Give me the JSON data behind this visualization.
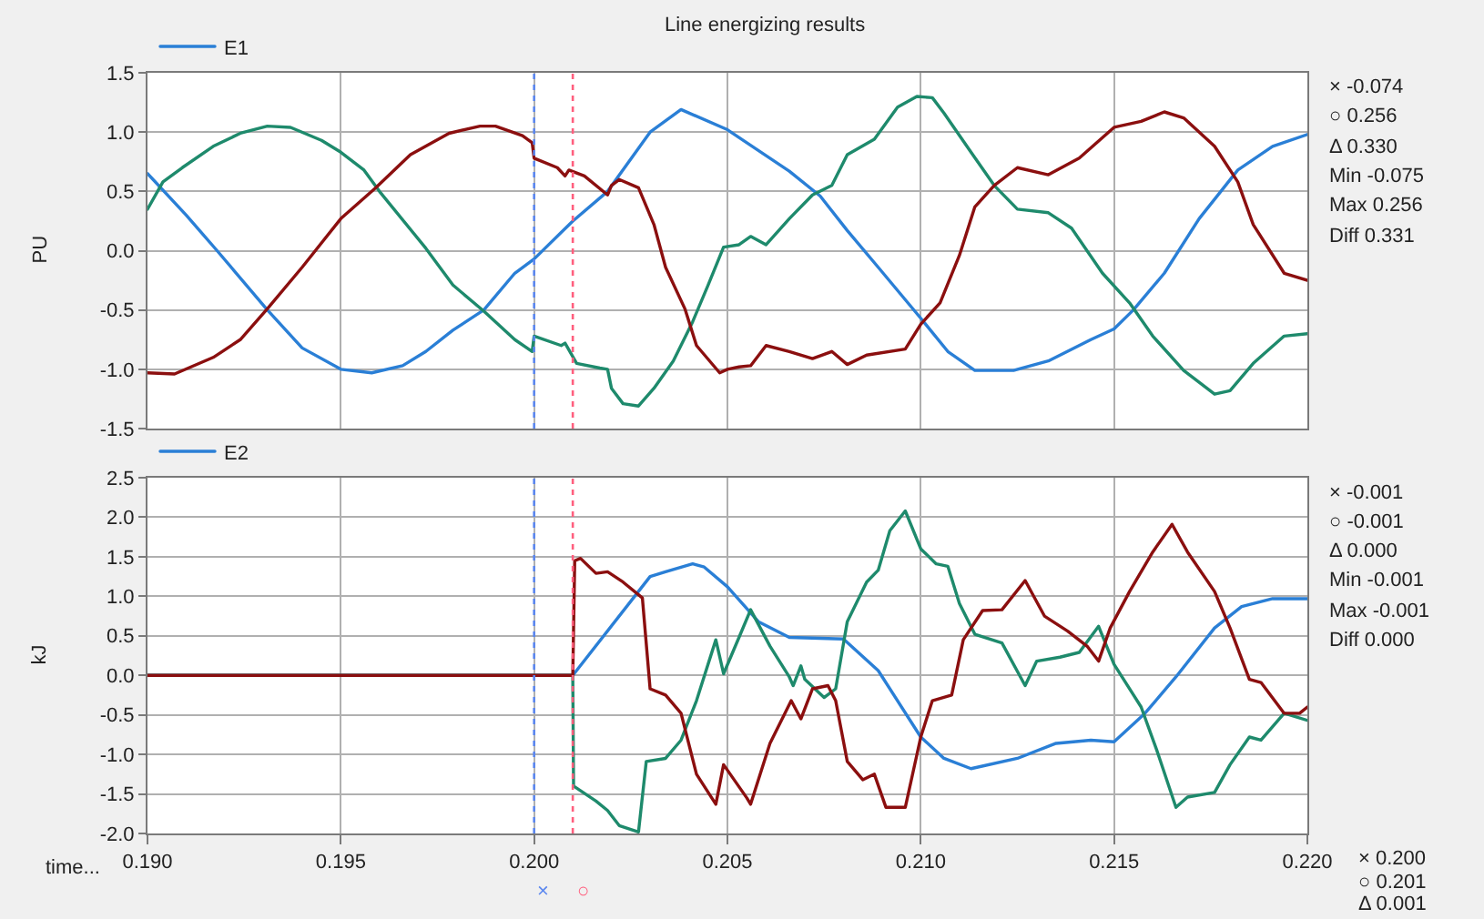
{
  "chart_data": [
    {
      "type": "line",
      "title": "Line energizing results",
      "ylabel": "PU",
      "xlim": [
        0.19,
        0.22
      ],
      "xticks": [
        0.19,
        0.195,
        0.2,
        0.205,
        0.21,
        0.215,
        0.22
      ],
      "ylim": [
        -1.5,
        1.5
      ],
      "yticks": [
        1.5,
        {
          "value": 1,
          "label": "1.0"
        },
        0.5,
        {
          "value": 0,
          "label": "0.0"
        },
        -0.5,
        {
          "value": -1,
          "label": "-1.0"
        },
        -1.5
      ],
      "tick_labels": "y",
      "grid": true,
      "legend": "top left",
      "series": [
        {
          "name": "E1",
          "color": "#2a7fd6",
          "x": [
            0.19,
            0.191,
            0.1918,
            0.1931,
            0.194,
            0.195,
            0.1958,
            0.1966,
            0.1972,
            0.1979,
            0.1987,
            0.1995,
            0.2,
            0.201,
            0.2019,
            0.203,
            0.2038,
            0.205,
            0.2066,
            0.2074,
            0.2081,
            0.2089,
            0.21,
            0.2107,
            0.2114,
            0.2124,
            0.2133,
            0.2144,
            0.215,
            0.2155,
            0.2163,
            0.2172,
            0.2182,
            0.2191,
            0.22
          ],
          "values": [
            0.65,
            0.3,
            0.0,
            -0.5,
            -0.82,
            -1.0,
            -1.03,
            -0.97,
            -0.85,
            -0.67,
            -0.5,
            -0.19,
            -0.07,
            0.25,
            0.5,
            1.0,
            1.19,
            1.02,
            0.67,
            0.46,
            0.17,
            -0.14,
            -0.57,
            -0.85,
            -1.01,
            -1.01,
            -0.93,
            -0.75,
            -0.66,
            -0.5,
            -0.19,
            0.27,
            0.68,
            0.88,
            0.98
          ]
        },
        {
          "color": "#1e8a6c",
          "x": [
            0.19,
            0.1904,
            0.1909,
            0.1917,
            0.1924,
            0.1931,
            0.1937,
            0.1945,
            0.195,
            0.1956,
            0.196,
            0.1972,
            0.1979,
            0.1987,
            0.1995,
            0.19995,
            0.2,
            0.2007,
            0.2008,
            0.2011,
            0.2017,
            0.2019,
            0.202,
            0.2023,
            0.2027,
            0.2031,
            0.2036,
            0.2041,
            0.2045,
            0.2049,
            0.2053,
            0.2056,
            0.206,
            0.2066,
            0.2072,
            0.2077,
            0.2081,
            0.2088,
            0.2094,
            0.2099,
            0.2103,
            0.2106,
            0.2113,
            0.2119,
            0.2125,
            0.2133,
            0.2139,
            0.2147,
            0.2154,
            0.216,
            0.2168,
            0.2176,
            0.218,
            0.2186,
            0.2194,
            0.22
          ],
          "values": [
            0.35,
            0.58,
            0.7,
            0.88,
            0.99,
            1.05,
            1.04,
            0.93,
            0.83,
            0.68,
            0.5,
            0.02,
            -0.29,
            -0.51,
            -0.75,
            -0.85,
            -0.72,
            -0.8,
            -0.78,
            -0.95,
            -0.99,
            -1.0,
            -1.16,
            -1.29,
            -1.31,
            -1.16,
            -0.93,
            -0.6,
            -0.29,
            0.03,
            0.05,
            0.12,
            0.05,
            0.27,
            0.47,
            0.55,
            0.81,
            0.94,
            1.21,
            1.3,
            1.29,
            1.16,
            0.83,
            0.55,
            0.35,
            0.32,
            0.19,
            -0.19,
            -0.44,
            -0.72,
            -1.01,
            -1.21,
            -1.18,
            -0.95,
            -0.72,
            -0.7
          ]
        },
        {
          "color": "#8b0f0f",
          "x": [
            0.19,
            0.1907,
            0.1917,
            0.1924,
            0.1931,
            0.194,
            0.195,
            0.1959,
            0.1968,
            0.1978,
            0.1986,
            0.199,
            0.1997,
            0.19995,
            0.2,
            0.2006,
            0.2008,
            0.2009,
            0.2013,
            0.2019,
            0.202,
            0.2022,
            0.2027,
            0.2031,
            0.2034,
            0.2039,
            0.2042,
            0.2048,
            0.205,
            0.2053,
            0.2056,
            0.206,
            0.2066,
            0.2072,
            0.2077,
            0.2081,
            0.2086,
            0.2096,
            0.21,
            0.2105,
            0.211,
            0.2114,
            0.2119,
            0.2125,
            0.2133,
            0.2141,
            0.215,
            0.2157,
            0.2163,
            0.2168,
            0.2176,
            0.2182,
            0.2186,
            0.2194,
            0.22
          ],
          "values": [
            -1.03,
            -1.04,
            -0.9,
            -0.75,
            -0.49,
            -0.14,
            0.27,
            0.53,
            0.81,
            0.99,
            1.05,
            1.05,
            0.97,
            0.91,
            0.78,
            0.7,
            0.63,
            0.68,
            0.63,
            0.47,
            0.55,
            0.6,
            0.53,
            0.22,
            -0.14,
            -0.49,
            -0.8,
            -1.03,
            -1.0,
            -0.98,
            -0.97,
            -0.8,
            -0.85,
            -0.91,
            -0.85,
            -0.96,
            -0.88,
            -0.83,
            -0.62,
            -0.44,
            -0.04,
            0.37,
            0.55,
            0.7,
            0.64,
            0.78,
            1.04,
            1.09,
            1.17,
            1.12,
            0.88,
            0.58,
            0.22,
            -0.19,
            -0.25
          ]
        }
      ],
      "ref_lines": [
        {
          "axis": "x",
          "value": 0.2,
          "color": "#5a86ef",
          "line_style": "dotted"
        },
        {
          "axis": "x",
          "value": 0.201,
          "color": "#ff5f7e",
          "line_style": "dotted"
        }
      ],
      "annotations": [
        "× -0.074",
        "○ 0.256",
        "Δ 0.330",
        "Min -0.075",
        "Max 0.256",
        "Diff 0.331"
      ]
    },
    {
      "type": "line",
      "ylabel": "kJ",
      "xlabel": "time...",
      "xlim": [
        0.19,
        0.22
      ],
      "xticks": [
        {
          "value": 0.19,
          "label": "0.190"
        },
        0.195,
        {
          "value": 0.2,
          "label": "0.200"
        },
        0.205,
        {
          "value": 0.21,
          "label": "0.210"
        },
        0.215,
        {
          "value": 0.22,
          "label": "0.220"
        }
      ],
      "ylim": [
        -2,
        2.5
      ],
      "yticks": [
        2.5,
        {
          "value": 2,
          "label": "2.0"
        },
        1.5,
        {
          "value": 1,
          "label": "1.0"
        },
        0.5,
        {
          "value": 0,
          "label": "0.0"
        },
        -0.5,
        {
          "value": -1,
          "label": "-1.0"
        },
        -1.5,
        {
          "value": -2,
          "label": "-2.0"
        }
      ],
      "grid": true,
      "legend": "top left",
      "series": [
        {
          "name": "E2",
          "color": "#2a7fd6",
          "x": [
            0.19,
            0.201,
            0.2026,
            0.203,
            0.2034,
            0.2041,
            0.2044,
            0.205,
            0.2058,
            0.2066,
            0.208,
            0.2089,
            0.21,
            0.2106,
            0.2113,
            0.2125,
            0.2135,
            0.2144,
            0.215,
            0.2158,
            0.2166,
            0.2176,
            0.2183,
            0.2191,
            0.22
          ],
          "values": [
            0,
            0,
            1.0,
            1.25,
            1.31,
            1.41,
            1.37,
            1.12,
            0.68,
            0.48,
            0.46,
            0.06,
            -0.78,
            -1.05,
            -1.18,
            -1.05,
            -0.86,
            -0.82,
            -0.84,
            -0.48,
            -0.02,
            0.6,
            0.87,
            0.97,
            0.97
          ]
        },
        {
          "color": "#1e8a6c",
          "x": [
            0.19,
            0.201,
            0.20102,
            0.2016,
            0.2019,
            0.2022,
            0.2027,
            0.2029,
            0.2034,
            0.2038,
            0.2042,
            0.2047,
            0.2049,
            0.2053,
            0.2056,
            0.2061,
            0.2066,
            0.2067,
            0.2069,
            0.207,
            0.2075,
            0.2078,
            0.2081,
            0.2086,
            0.2089,
            0.2092,
            0.2096,
            0.21,
            0.2104,
            0.2107,
            0.211,
            0.2114,
            0.2121,
            0.2127,
            0.213,
            0.2136,
            0.2141,
            0.2146,
            0.215,
            0.2157,
            0.2161,
            0.2166,
            0.2169,
            0.2176,
            0.218,
            0.2185,
            0.2188,
            0.2194,
            0.22
          ],
          "values": [
            0,
            0,
            -1.4,
            -1.59,
            -1.71,
            -1.9,
            -1.98,
            -1.09,
            -1.05,
            -0.82,
            -0.32,
            0.45,
            0.02,
            0.48,
            0.83,
            0.37,
            -0.02,
            -0.13,
            0.12,
            -0.05,
            -0.28,
            -0.17,
            0.68,
            1.18,
            1.33,
            1.83,
            2.08,
            1.6,
            1.41,
            1.38,
            0.91,
            0.52,
            0.41,
            -0.13,
            0.18,
            0.23,
            0.29,
            0.62,
            0.14,
            -0.4,
            -0.94,
            -1.67,
            -1.54,
            -1.48,
            -1.13,
            -0.78,
            -0.82,
            -0.48,
            -0.57
          ]
        },
        {
          "color": "#8b0f0f",
          "x": [
            0.19,
            0.201,
            0.20105,
            0.2012,
            0.2016,
            0.2019,
            0.2023,
            0.2028,
            0.203,
            0.2034,
            0.2038,
            0.2042,
            0.2047,
            0.2049,
            0.2055,
            0.2056,
            0.2061,
            0.20665,
            0.2069,
            0.2072,
            0.2076,
            0.2078,
            0.2081,
            0.2085,
            0.2088,
            0.2091,
            0.2096,
            0.21,
            0.2103,
            0.2108,
            0.2111,
            0.2116,
            0.2121,
            0.2127,
            0.2132,
            0.2138,
            0.2143,
            0.2146,
            0.2149,
            0.2154,
            0.216,
            0.2165,
            0.2169,
            0.2176,
            0.218,
            0.2185,
            0.2188,
            0.2194,
            0.2198,
            0.22
          ],
          "values": [
            0,
            0,
            1.45,
            1.48,
            1.29,
            1.31,
            1.18,
            0.98,
            -0.17,
            -0.25,
            -0.48,
            -1.25,
            -1.63,
            -1.13,
            -1.55,
            -1.63,
            -0.86,
            -0.32,
            -0.55,
            -0.17,
            -0.13,
            -0.32,
            -1.09,
            -1.32,
            -1.25,
            -1.67,
            -1.67,
            -0.78,
            -0.32,
            -0.25,
            0.45,
            0.82,
            0.83,
            1.2,
            0.75,
            0.56,
            0.37,
            0.18,
            0.6,
            1.06,
            1.56,
            1.91,
            1.56,
            1.06,
            0.6,
            -0.05,
            -0.09,
            -0.48,
            -0.48,
            -0.4
          ]
        }
      ],
      "ref_lines": [
        {
          "axis": "x",
          "value": 0.2,
          "label": "×",
          "color": "#5a86ef",
          "line_style": "dotted"
        },
        {
          "axis": "x",
          "value": 0.201,
          "label": "○",
          "color": "#ff5f7e",
          "line_style": "dotted"
        }
      ],
      "annotations": [
        "× -0.001",
        "○ -0.001",
        "Δ 0.000",
        "Min -0.001",
        "Max -0.001",
        "Diff 0.000",
        "× 0.200",
        "○ 0.201",
        "Δ 0.001"
      ]
    }
  ]
}
